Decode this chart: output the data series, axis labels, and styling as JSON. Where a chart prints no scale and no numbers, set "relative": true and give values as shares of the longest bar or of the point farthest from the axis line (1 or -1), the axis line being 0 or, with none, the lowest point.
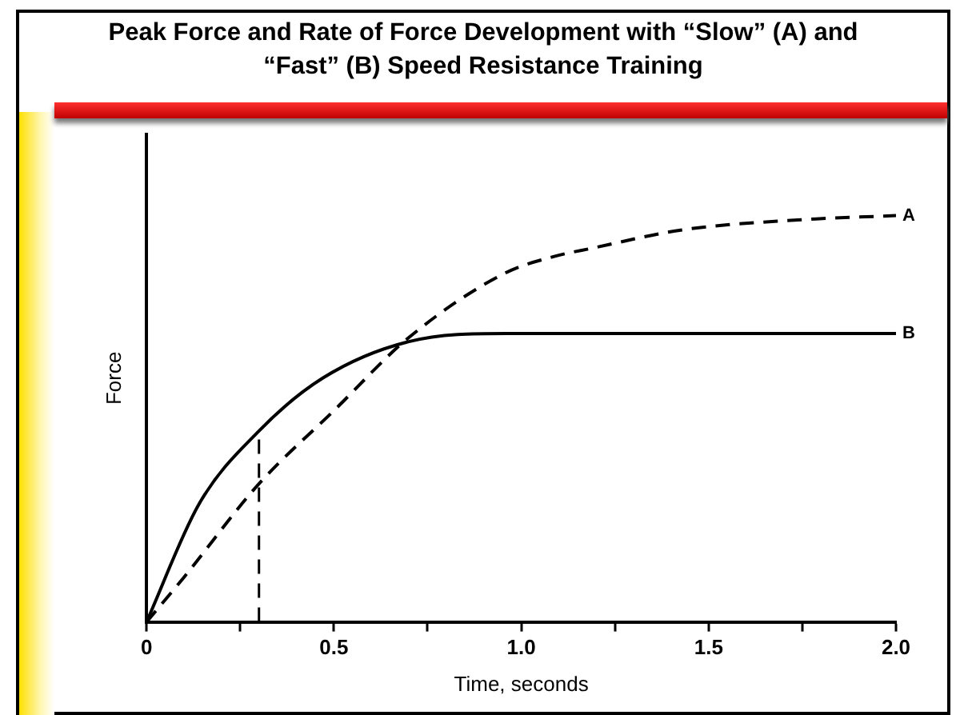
{
  "chart_data": {
    "type": "line",
    "title": "Peak Force and Rate of Force Development with “Slow” (A) and “Fast” (B) Speed Resistance Training",
    "xlabel": "Time, seconds",
    "ylabel": "Force",
    "relative": true,
    "xlim": [
      0,
      2
    ],
    "xticks": [
      0,
      {
        "value": 0.25,
        "label": null
      },
      {
        "value": 0.5,
        "label": "0.5"
      },
      {
        "value": 0.75,
        "label": null
      },
      {
        "value": 1,
        "label": "1.0"
      },
      {
        "value": 1.25,
        "label": null
      },
      {
        "value": 1.5,
        "label": "1.5"
      },
      {
        "value": 1.75,
        "label": null
      },
      {
        "value": 2,
        "label": "2.0"
      }
    ],
    "grid": false,
    "legend": false,
    "marker": "none",
    "series": [
      {
        "name": "A",
        "color": "#000000",
        "line_style": "dashed",
        "x": [
          0,
          0.1,
          0.3,
          0.5,
          0.7,
          0.96,
          1.09,
          1.19,
          1.43,
          1.75,
          2.0
        ],
        "values": [
          0,
          0.11,
          0.34,
          0.52,
          0.7,
          0.86,
          0.9,
          0.92,
          0.965,
          0.99,
          1.0
        ]
      },
      {
        "name": "B",
        "color": "#000000",
        "line_style": "solid",
        "x": [
          0,
          0.14,
          0.3,
          0.47,
          0.7,
          0.96,
          1.5,
          2.0
        ],
        "values": [
          0,
          0.29,
          0.47,
          0.6,
          0.69,
          0.71,
          0.71,
          0.71
        ]
      }
    ],
    "ref_lines": [
      {
        "axis": "x",
        "value": 0.3,
        "color": "#000000",
        "line_style": "dashed"
      }
    ]
  }
}
